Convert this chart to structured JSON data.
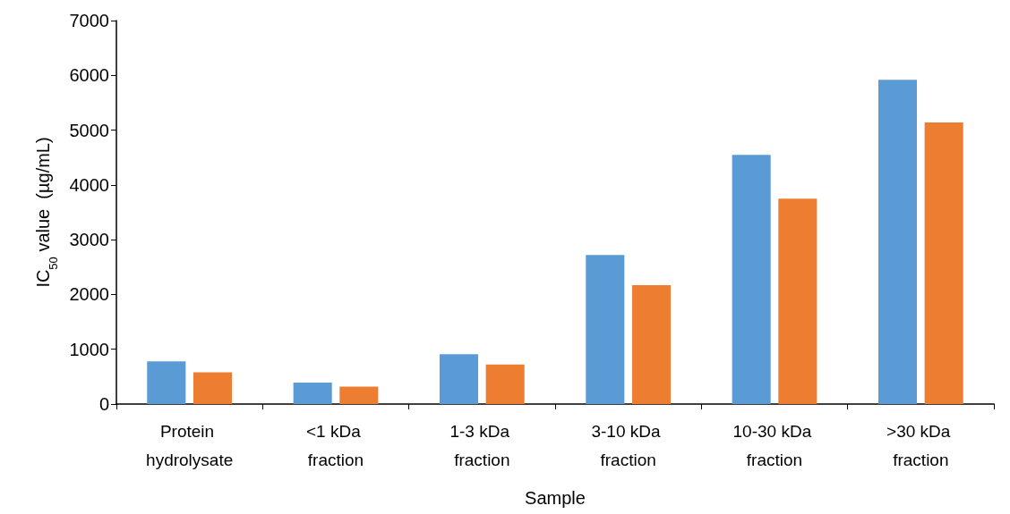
{
  "chart_data": {
    "type": "bar",
    "xlabel": "Sample",
    "ylabel": "IC$_{50}$ value  (µg/mL)",
    "categories": [
      "Protein hydrolysate",
      "<1 kDa fraction",
      "1-3 kDa fraction",
      "3-10 kDa fraction",
      "10-30 kDa fraction",
      ">30 kDa fraction"
    ],
    "series": [
      {
        "color": "#5b9bd5",
        "values": [
          780,
          390,
          910,
          2720,
          4550,
          5920
        ]
      },
      {
        "color": "#ed7d31",
        "values": [
          580,
          320,
          720,
          2170,
          3750,
          5140
        ]
      }
    ],
    "ylim": [
      0,
      7000
    ],
    "yticks": [
      0,
      1000,
      2000,
      3000,
      4000,
      5000,
      6000,
      7000
    ],
    "grid": false
  }
}
